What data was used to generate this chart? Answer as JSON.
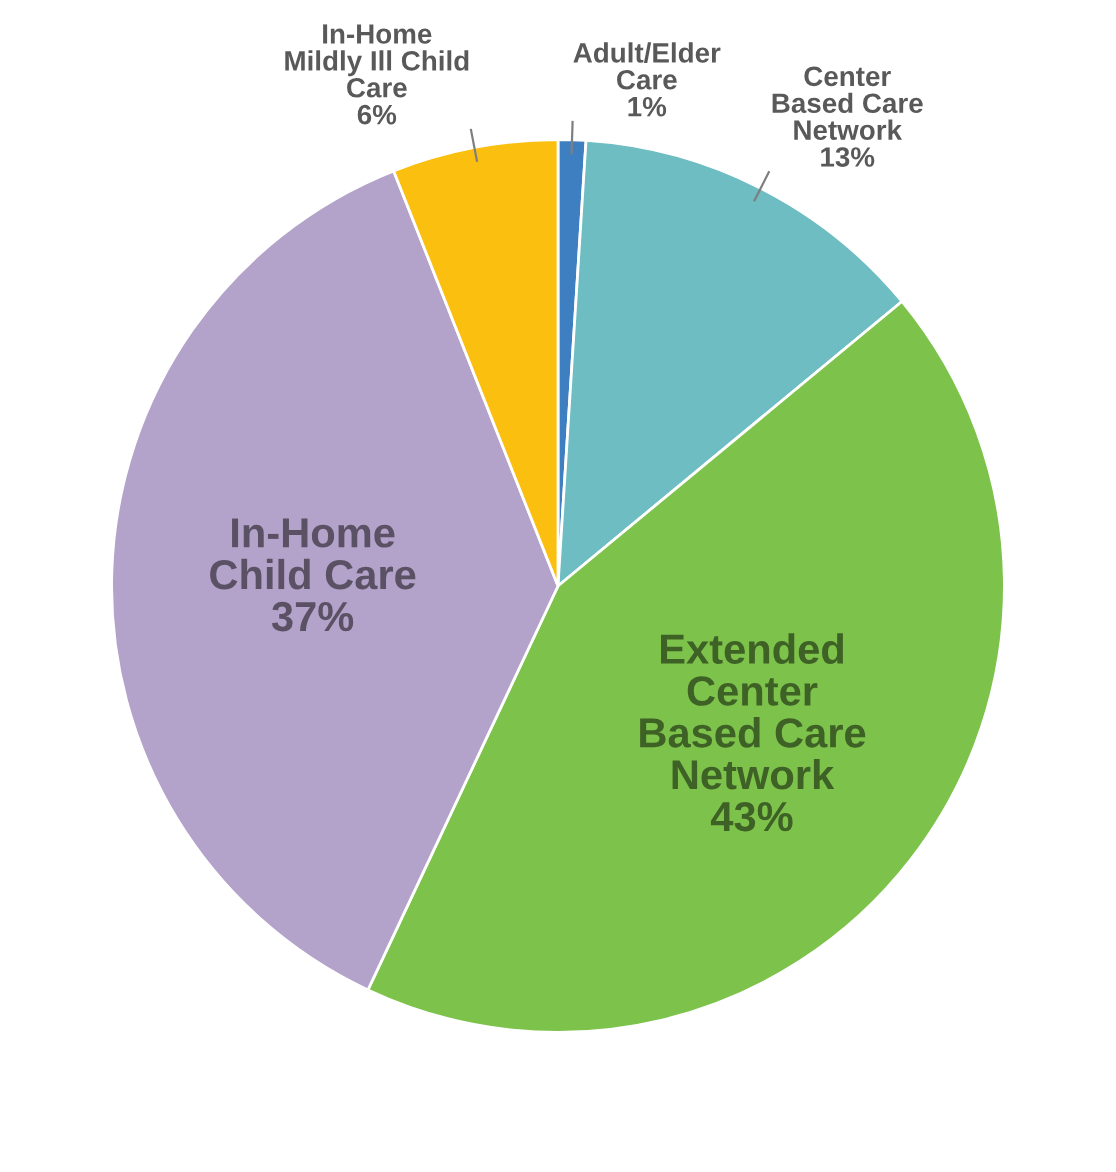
{
  "chart_data": {
    "type": "pie",
    "categories": [
      "Adult/Elder\nCare",
      "Center\nBased Care\nNetwork",
      "Extended\nCenter\nBased Care\nNetwork",
      "In-Home\nChild Care",
      "In-Home\nMildly Ill Child\nCare"
    ],
    "values": [
      1,
      13,
      43,
      37,
      6
    ],
    "colors": [
      "#3d7fc1",
      "#6dbdc2",
      "#7dc24b",
      "#b3a2c9",
      "#fbbf10"
    ],
    "value_labels": [
      "1%",
      "13%",
      "43%",
      "37%",
      "6%"
    ]
  }
}
